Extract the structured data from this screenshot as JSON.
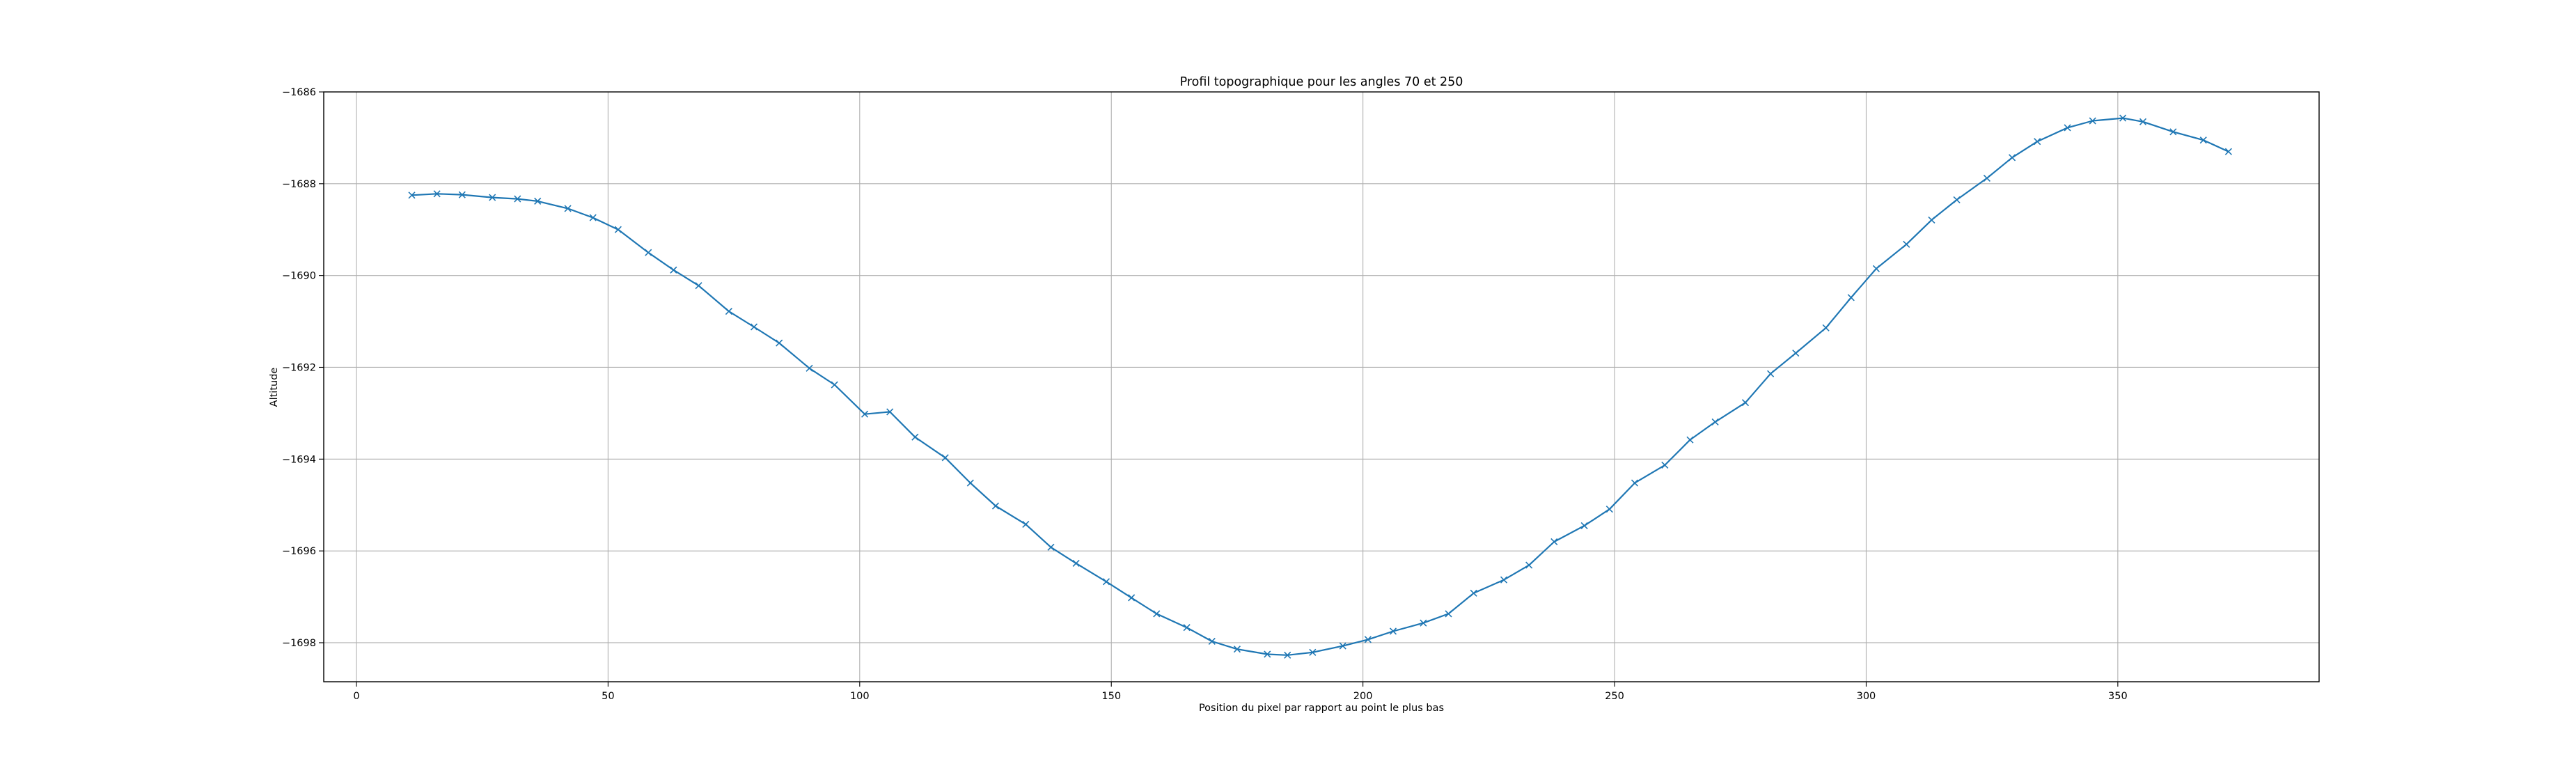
{
  "chart_data": {
    "type": "line",
    "title": "Profil topographique pour les angles 70 et 250",
    "xlabel": "Position du pixel par rapport au point le plus bas",
    "ylabel": "Altitude",
    "xlim": [
      -6.5,
      390
    ],
    "ylim": [
      -1698.85,
      -1686
    ],
    "x_ticks": [
      0,
      50,
      100,
      150,
      200,
      250,
      300,
      350
    ],
    "y_ticks": [
      -1686,
      -1688,
      -1690,
      -1692,
      -1694,
      -1696,
      -1698
    ],
    "grid": true,
    "marker": "x",
    "color": "#1f77b4",
    "series": [
      {
        "x": [
          11,
          16,
          21,
          27,
          32,
          36,
          42,
          47,
          52,
          58,
          63,
          68,
          74,
          79,
          84,
          90,
          95,
          101,
          106,
          111,
          117,
          122,
          127,
          133,
          138,
          143,
          149,
          154,
          159,
          165,
          170,
          175,
          181,
          185,
          190,
          196,
          201,
          206,
          212,
          217,
          222,
          228,
          233,
          238,
          244,
          249,
          254,
          260,
          265,
          270,
          276,
          281,
          286,
          292,
          297,
          302,
          308,
          313,
          318,
          324,
          329,
          334,
          340,
          345,
          351,
          355,
          361,
          367,
          372
        ],
        "y": [
          -1688.25,
          -1688.22,
          -1688.24,
          -1688.3,
          -1688.33,
          -1688.38,
          -1688.54,
          -1688.74,
          -1689.0,
          -1689.5,
          -1689.88,
          -1690.22,
          -1690.78,
          -1691.12,
          -1691.47,
          -1692.02,
          -1692.38,
          -1693.02,
          -1692.97,
          -1693.52,
          -1693.97,
          -1694.52,
          -1695.02,
          -1695.42,
          -1695.92,
          -1696.27,
          -1696.67,
          -1697.02,
          -1697.37,
          -1697.67,
          -1697.97,
          -1698.14,
          -1698.25,
          -1698.27,
          -1698.21,
          -1698.07,
          -1697.93,
          -1697.75,
          -1697.57,
          -1697.37,
          -1696.92,
          -1696.63,
          -1696.31,
          -1695.8,
          -1695.45,
          -1695.09,
          -1694.52,
          -1694.13,
          -1693.58,
          -1693.19,
          -1692.77,
          -1692.14,
          -1691.69,
          -1691.14,
          -1690.48,
          -1689.85,
          -1689.32,
          -1688.79,
          -1688.35,
          -1687.88,
          -1687.43,
          -1687.08,
          -1686.78,
          -1686.63,
          -1686.57,
          -1686.65,
          -1686.87,
          -1687.05,
          -1687.3
        ]
      }
    ]
  }
}
